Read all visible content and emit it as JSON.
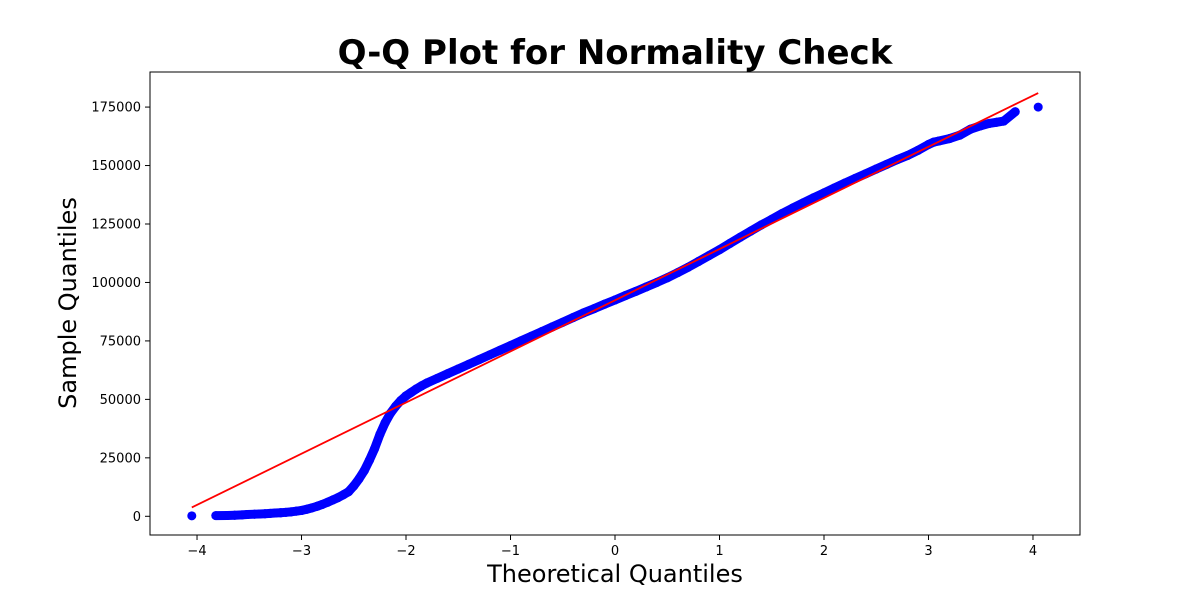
{
  "chart_data": {
    "type": "scatter",
    "title": "Q-Q Plot for Normality Check",
    "xlabel": "Theoretical Quantiles",
    "ylabel": "Sample Quantiles",
    "xlim": [
      -4.45,
      4.45
    ],
    "ylim": [
      -8000,
      190000
    ],
    "x_ticks": [
      -4,
      -3,
      -2,
      -1,
      0,
      1,
      2,
      3,
      4
    ],
    "x_tick_labels": [
      "−4",
      "−3",
      "−2",
      "−1",
      "0",
      "1",
      "2",
      "3",
      "4"
    ],
    "y_ticks": [
      0,
      25000,
      50000,
      75000,
      100000,
      125000,
      150000,
      175000
    ],
    "y_tick_labels": [
      "0",
      "25000",
      "50000",
      "75000",
      "100000",
      "125000",
      "150000",
      "175000"
    ],
    "grid": false,
    "series": [
      {
        "kind": "points",
        "color": "#0000ff",
        "points": [
          [
            -4.05,
            200
          ],
          [
            -3.82,
            300
          ],
          [
            -3.71,
            350
          ],
          [
            -3.64,
            450
          ],
          [
            -3.57,
            600
          ],
          [
            -3.52,
            750
          ],
          [
            -3.45,
            900
          ],
          [
            -3.4,
            1000
          ],
          [
            -3.35,
            1100
          ],
          [
            -3.3,
            1250
          ],
          [
            -3.25,
            1400
          ],
          [
            -3.2,
            1500
          ],
          [
            -3.15,
            1700
          ],
          [
            -3.1,
            1900
          ],
          [
            -3.05,
            2200
          ],
          [
            -3.0,
            2500
          ],
          [
            -2.95,
            3000
          ],
          [
            -2.9,
            3600
          ],
          [
            -2.85,
            4300
          ],
          [
            -2.8,
            5100
          ],
          [
            -2.75,
            6000
          ],
          [
            -2.7,
            7000
          ],
          [
            -2.65,
            8000
          ],
          [
            -2.6,
            9200
          ],
          [
            -2.55,
            10500
          ],
          [
            -2.5,
            13000
          ],
          [
            -2.45,
            16000
          ],
          [
            -2.4,
            19500
          ],
          [
            -2.35,
            24000
          ],
          [
            -2.3,
            29000
          ],
          [
            -2.25,
            35000
          ],
          [
            -2.2,
            40000
          ],
          [
            -2.15,
            44000
          ],
          [
            -2.1,
            47000
          ],
          [
            -2.05,
            49500
          ],
          [
            -2.0,
            51500
          ],
          [
            -1.95,
            53000
          ],
          [
            -1.9,
            54500
          ],
          [
            -1.85,
            55800
          ],
          [
            -1.8,
            57000
          ],
          [
            -1.7,
            59000
          ],
          [
            -1.6,
            61000
          ],
          [
            -1.5,
            63000
          ],
          [
            -1.4,
            65000
          ],
          [
            -1.3,
            67000
          ],
          [
            -1.2,
            69000
          ],
          [
            -1.1,
            71000
          ],
          [
            -1.0,
            73000
          ],
          [
            -0.9,
            75000
          ],
          [
            -0.8,
            77000
          ],
          [
            -0.7,
            79000
          ],
          [
            -0.6,
            81000
          ],
          [
            -0.5,
            83000
          ],
          [
            -0.4,
            85000
          ],
          [
            -0.3,
            87000
          ],
          [
            -0.2,
            88800
          ],
          [
            -0.1,
            90700
          ],
          [
            0.0,
            92500
          ],
          [
            0.1,
            94400
          ],
          [
            0.2,
            96200
          ],
          [
            0.3,
            98100
          ],
          [
            0.4,
            100000
          ],
          [
            0.5,
            102000
          ],
          [
            0.6,
            104200
          ],
          [
            0.7,
            106500
          ],
          [
            0.8,
            109000
          ],
          [
            0.9,
            111500
          ],
          [
            1.0,
            114000
          ],
          [
            1.1,
            116700
          ],
          [
            1.2,
            119400
          ],
          [
            1.3,
            122000
          ],
          [
            1.4,
            124600
          ],
          [
            1.5,
            127000
          ],
          [
            1.6,
            129500
          ],
          [
            1.7,
            131800
          ],
          [
            1.8,
            134000
          ],
          [
            1.9,
            136200
          ],
          [
            2.0,
            138300
          ],
          [
            2.1,
            140400
          ],
          [
            2.2,
            142500
          ],
          [
            2.3,
            144500
          ],
          [
            2.4,
            146500
          ],
          [
            2.5,
            148500
          ],
          [
            2.6,
            150500
          ],
          [
            2.7,
            152500
          ],
          [
            2.8,
            154300
          ],
          [
            2.9,
            156500
          ],
          [
            3.0,
            159000
          ],
          [
            3.05,
            160000
          ],
          [
            3.1,
            160500
          ],
          [
            3.2,
            161500
          ],
          [
            3.3,
            163000
          ],
          [
            3.4,
            165500
          ],
          [
            3.5,
            167000
          ],
          [
            3.58,
            168000
          ],
          [
            3.65,
            168500
          ],
          [
            3.72,
            169000
          ],
          [
            3.83,
            173000
          ],
          [
            4.05,
            175000
          ]
        ]
      },
      {
        "kind": "line",
        "color": "#ff0000",
        "points": [
          [
            -4.05,
            3800
          ],
          [
            4.05,
            181000
          ]
        ]
      }
    ]
  }
}
